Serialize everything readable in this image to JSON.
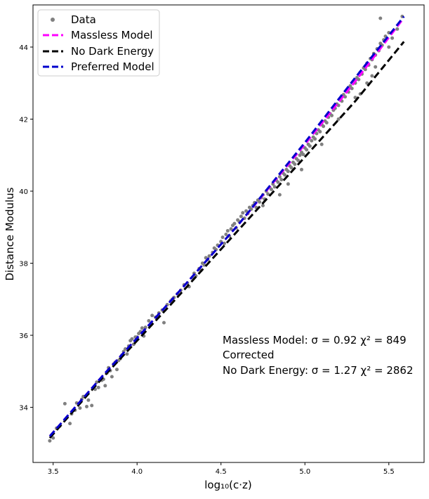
{
  "chart_data": {
    "type": "scatter",
    "xlabel": "log₁₀(c·z)",
    "ylabel": "Distance Modulus",
    "xlim": [
      3.38,
      5.71
    ],
    "ylim": [
      32.47,
      45.17
    ],
    "x_ticks": [
      3.5,
      4.0,
      4.5,
      5.0,
      5.5
    ],
    "x_tick_labels": [
      "3.5",
      "4.0",
      "4.5",
      "5.0",
      "5.5"
    ],
    "y_ticks": [
      34,
      36,
      38,
      40,
      42,
      44
    ],
    "y_tick_labels": [
      "34",
      "36",
      "38",
      "40",
      "42",
      "44"
    ],
    "grid": false,
    "legend_position": "top-left",
    "legend": [
      {
        "label": "Data",
        "kind": "marker",
        "color": "#808080"
      },
      {
        "label": "Massless Model",
        "kind": "dashed-line",
        "color": "#ff00ff"
      },
      {
        "label": "No Dark Energy",
        "kind": "dashed-line",
        "color": "#000000"
      },
      {
        "label": "Preferred Model",
        "kind": "dashed-line",
        "color": "#0000cc"
      }
    ],
    "annotations": [
      "Massless Model:  σ = 0.92   χ² = 849",
      "Corrected",
      "No Dark Energy:  σ = 1.27   χ² = 2862"
    ],
    "data_series": {
      "name": "Data",
      "color": "#808080",
      "points": [
        [
          3.48,
          33.07
        ],
        [
          3.5,
          33.15
        ],
        [
          3.52,
          33.42
        ],
        [
          3.54,
          33.48
        ],
        [
          3.57,
          34.1
        ],
        [
          3.6,
          33.55
        ],
        [
          3.61,
          33.82
        ],
        [
          3.63,
          33.92
        ],
        [
          3.64,
          34.12
        ],
        [
          3.66,
          33.98
        ],
        [
          3.67,
          34.22
        ],
        [
          3.68,
          34.3
        ],
        [
          3.7,
          34.02
        ],
        [
          3.71,
          34.2
        ],
        [
          3.73,
          34.05
        ],
        [
          3.75,
          34.5
        ],
        [
          3.76,
          34.7
        ],
        [
          3.77,
          34.55
        ],
        [
          3.79,
          34.75
        ],
        [
          3.8,
          34.78
        ],
        [
          3.81,
          34.6
        ],
        [
          3.82,
          34.95
        ],
        [
          3.83,
          35.1
        ],
        [
          3.84,
          35.02
        ],
        [
          3.85,
          34.85
        ],
        [
          3.86,
          35.2
        ],
        [
          3.87,
          35.25
        ],
        [
          3.88,
          35.05
        ],
        [
          3.89,
          35.3
        ],
        [
          3.9,
          35.35
        ],
        [
          3.91,
          35.45
        ],
        [
          3.92,
          35.55
        ],
        [
          3.93,
          35.62
        ],
        [
          3.94,
          35.48
        ],
        [
          3.95,
          35.7
        ],
        [
          3.96,
          35.85
        ],
        [
          3.97,
          35.9
        ],
        [
          3.98,
          35.75
        ],
        [
          3.99,
          35.95
        ],
        [
          4.0,
          35.95
        ],
        [
          4.01,
          36.05
        ],
        [
          4.02,
          36.1
        ],
        [
          4.03,
          36.2
        ],
        [
          4.04,
          35.98
        ],
        [
          4.05,
          36.22
        ],
        [
          4.07,
          36.4
        ],
        [
          4.09,
          36.55
        ],
        [
          4.11,
          36.5
        ],
        [
          4.13,
          36.62
        ],
        [
          4.15,
          36.7
        ],
        [
          4.16,
          36.35
        ],
        [
          4.18,
          36.85
        ],
        [
          4.2,
          36.95
        ],
        [
          4.21,
          37.0
        ],
        [
          4.22,
          37.05
        ],
        [
          4.24,
          37.15
        ],
        [
          4.26,
          37.25
        ],
        [
          4.28,
          37.4
        ],
        [
          4.3,
          37.45
        ],
        [
          4.31,
          37.35
        ],
        [
          4.33,
          37.6
        ],
        [
          4.34,
          37.72
        ],
        [
          4.35,
          37.65
        ],
        [
          4.37,
          37.85
        ],
        [
          4.38,
          37.8
        ],
        [
          4.39,
          38.0
        ],
        [
          4.4,
          37.95
        ],
        [
          4.41,
          38.15
        ],
        [
          4.42,
          38.1
        ],
        [
          4.43,
          38.2
        ],
        [
          4.45,
          38.3
        ],
        [
          4.46,
          38.42
        ],
        [
          4.47,
          38.38
        ],
        [
          4.48,
          38.5
        ],
        [
          4.5,
          38.6
        ],
        [
          4.51,
          38.72
        ],
        [
          4.52,
          38.55
        ],
        [
          4.53,
          38.8
        ],
        [
          4.54,
          38.9
        ],
        [
          4.55,
          38.75
        ],
        [
          4.56,
          38.95
        ],
        [
          4.57,
          39.05
        ],
        [
          4.58,
          39.1
        ],
        [
          4.59,
          38.98
        ],
        [
          4.6,
          39.2
        ],
        [
          4.61,
          39.15
        ],
        [
          4.62,
          39.3
        ],
        [
          4.63,
          39.4
        ],
        [
          4.64,
          39.25
        ],
        [
          4.65,
          39.45
        ],
        [
          4.66,
          39.38
        ],
        [
          4.67,
          39.55
        ],
        [
          4.68,
          39.5
        ],
        [
          4.69,
          39.6
        ],
        [
          4.7,
          39.68
        ],
        [
          4.71,
          39.55
        ],
        [
          4.72,
          39.75
        ],
        [
          4.73,
          39.7
        ],
        [
          4.74,
          39.82
        ],
        [
          4.75,
          39.9
        ],
        [
          4.76,
          39.78
        ],
        [
          4.77,
          40.0
        ],
        [
          4.78,
          39.92
        ],
        [
          4.79,
          40.1
        ],
        [
          4.8,
          40.05
        ],
        [
          4.81,
          40.2
        ],
        [
          4.82,
          40.12
        ],
        [
          4.83,
          40.3
        ],
        [
          4.84,
          40.25
        ],
        [
          4.85,
          40.4
        ],
        [
          4.86,
          40.32
        ],
        [
          4.87,
          40.5
        ],
        [
          4.88,
          40.45
        ],
        [
          4.89,
          40.6
        ],
        [
          4.9,
          40.55
        ],
        [
          4.91,
          40.7
        ],
        [
          4.92,
          40.65
        ],
        [
          4.93,
          40.8
        ],
        [
          4.94,
          40.75
        ],
        [
          4.95,
          40.9
        ],
        [
          4.96,
          40.85
        ],
        [
          4.97,
          41.0
        ],
        [
          4.98,
          41.08
        ],
        [
          4.99,
          41.02
        ],
        [
          5.0,
          41.2
        ],
        [
          5.01,
          41.15
        ],
        [
          5.02,
          41.3
        ],
        [
          5.03,
          41.25
        ],
        [
          5.04,
          41.4
        ],
        [
          5.05,
          41.5
        ],
        [
          5.06,
          41.45
        ],
        [
          5.07,
          41.6
        ],
        [
          5.08,
          41.7
        ],
        [
          5.09,
          41.65
        ],
        [
          5.1,
          41.85
        ],
        [
          5.11,
          41.8
        ],
        [
          5.12,
          41.95
        ],
        [
          5.13,
          41.9
        ],
        [
          5.14,
          42.05
        ],
        [
          5.15,
          42.15
        ],
        [
          5.16,
          42.1
        ],
        [
          5.17,
          42.25
        ],
        [
          5.18,
          42.3
        ],
        [
          5.19,
          42.42
        ],
        [
          5.2,
          42.38
        ],
        [
          5.21,
          42.55
        ],
        [
          5.22,
          42.5
        ],
        [
          5.23,
          42.68
        ],
        [
          5.24,
          42.62
        ],
        [
          5.25,
          42.8
        ],
        [
          5.26,
          42.75
        ],
        [
          5.27,
          42.92
        ],
        [
          5.28,
          42.85
        ],
        [
          5.29,
          43.05
        ],
        [
          5.3,
          43.0
        ],
        [
          5.31,
          43.15
        ],
        [
          5.32,
          43.1
        ],
        [
          5.33,
          43.3
        ],
        [
          5.34,
          43.25
        ],
        [
          5.35,
          43.42
        ],
        [
          5.36,
          43.38
        ],
        [
          5.37,
          43.55
        ],
        [
          5.38,
          43.5
        ],
        [
          5.39,
          43.68
        ],
        [
          5.4,
          43.65
        ],
        [
          5.41,
          43.82
        ],
        [
          5.42,
          43.78
        ],
        [
          5.43,
          43.95
        ],
        [
          5.44,
          43.9
        ],
        [
          5.45,
          44.1
        ],
        [
          5.46,
          44.05
        ],
        [
          5.47,
          44.2
        ],
        [
          5.48,
          44.3
        ],
        [
          5.5,
          44.4
        ],
        [
          5.52,
          44.25
        ],
        [
          5.45,
          44.8
        ],
        [
          5.58,
          44.85
        ],
        [
          5.33,
          42.7
        ],
        [
          5.4,
          43.2
        ],
        [
          5.1,
          41.3
        ],
        [
          4.98,
          40.6
        ],
        [
          4.9,
          40.2
        ],
        [
          4.85,
          39.9
        ],
        [
          4.75,
          39.6
        ],
        [
          5.2,
          42.0
        ],
        [
          5.3,
          42.6
        ],
        [
          5.37,
          43.0
        ],
        [
          5.42,
          43.45
        ],
        [
          5.5,
          44.0
        ],
        [
          5.55,
          44.5
        ]
      ]
    },
    "model_lines": [
      {
        "name": "Massless Model",
        "color": "#ff00ff",
        "points": [
          [
            3.48,
            33.2
          ],
          [
            3.8,
            34.9
          ],
          [
            4.2,
            36.95
          ],
          [
            4.6,
            39.05
          ],
          [
            5.0,
            41.3
          ],
          [
            5.3,
            43.05
          ],
          [
            5.58,
            44.75
          ]
        ]
      },
      {
        "name": "No Dark Energy",
        "color": "#000000",
        "points": [
          [
            3.48,
            33.15
          ],
          [
            3.8,
            34.85
          ],
          [
            4.2,
            36.85
          ],
          [
            4.6,
            38.9
          ],
          [
            5.0,
            40.95
          ],
          [
            5.3,
            42.5
          ],
          [
            5.59,
            44.15
          ]
        ]
      },
      {
        "name": "Preferred Model",
        "color": "#0000cc",
        "points": [
          [
            3.48,
            33.2
          ],
          [
            3.8,
            34.9
          ],
          [
            4.2,
            36.95
          ],
          [
            4.6,
            39.05
          ],
          [
            5.0,
            41.35
          ],
          [
            5.3,
            43.15
          ],
          [
            5.59,
            44.85
          ]
        ]
      }
    ]
  }
}
